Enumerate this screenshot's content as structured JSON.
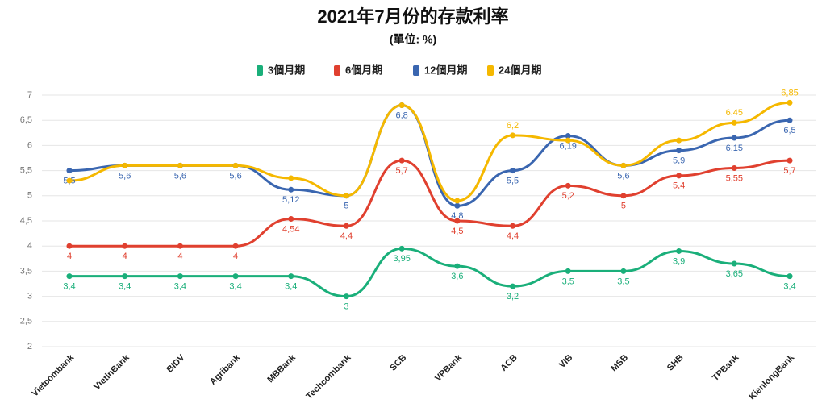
{
  "chart_data": {
    "type": "line",
    "title": "2021年7月份的存款利率",
    "subtitle": "(單位: %)",
    "categories": [
      "Vietcombank",
      "VietinBank",
      "BIDV",
      "Agribank",
      "MBBank",
      "Techcombank",
      "SCB",
      "VPBank",
      "ACB",
      "VIB",
      "MSB",
      "SHB",
      "TPBank",
      "KienlongBank"
    ],
    "series": [
      {
        "name": "3個月期",
        "color": "#1aaf7a",
        "values": [
          3.4,
          3.4,
          3.4,
          3.4,
          3.4,
          3,
          3.95,
          3.6,
          3.2,
          3.5,
          3.5,
          3.9,
          3.65,
          3.4
        ],
        "value_labels": [
          "3,4",
          "3,4",
          "3,4",
          "3,4",
          "3,4",
          "3",
          "3,95",
          "3,6",
          "3,2",
          "3,5",
          "3,5",
          "3,9",
          "3,65",
          "3,4"
        ]
      },
      {
        "name": "6個月期",
        "color": "#e0402f",
        "values": [
          4,
          4,
          4,
          4,
          4.54,
          4.4,
          5.7,
          4.5,
          4.4,
          5.2,
          5,
          5.4,
          5.55,
          5.7
        ],
        "value_labels": [
          "4",
          "4",
          "4",
          "4",
          "4,54",
          "4,4",
          "5,7",
          "4,5",
          "4,4",
          "5,2",
          "5",
          "5,4",
          "5,55",
          "5,7"
        ]
      },
      {
        "name": "12個月期",
        "color": "#3a66b0",
        "values": [
          5.5,
          5.6,
          5.6,
          5.6,
          5.12,
          5,
          6.8,
          4.8,
          5.5,
          6.19,
          5.6,
          5.9,
          6.15,
          6.5
        ],
        "value_labels": [
          "5,5",
          "5,6",
          "5,6",
          "5,6",
          "5,12",
          "5",
          "6,8",
          "4,8",
          "5,5",
          "6,19",
          "5,6",
          "5,9",
          "6,15",
          "6,5"
        ]
      },
      {
        "name": "24個月期",
        "color": "#f5b800",
        "values": [
          5.3,
          5.6,
          5.6,
          5.6,
          5.35,
          5,
          6.8,
          4.9,
          6.2,
          6.1,
          5.6,
          6.1,
          6.45,
          6.85
        ],
        "value_labels": [
          null,
          null,
          null,
          null,
          null,
          null,
          null,
          null,
          "6,2",
          null,
          null,
          null,
          "6,45",
          "6,85"
        ]
      }
    ],
    "ylim": [
      2,
      7
    ],
    "yticks": [
      2,
      {
        "value": 2.5,
        "label": "2,5"
      },
      3,
      {
        "value": 3.5,
        "label": "3,5"
      },
      4,
      {
        "value": 4.5,
        "label": "4,5"
      },
      5,
      {
        "value": 5.5,
        "label": "5,5"
      },
      6,
      {
        "value": 6.5,
        "label": "6,5"
      },
      7
    ],
    "grid": true
  }
}
